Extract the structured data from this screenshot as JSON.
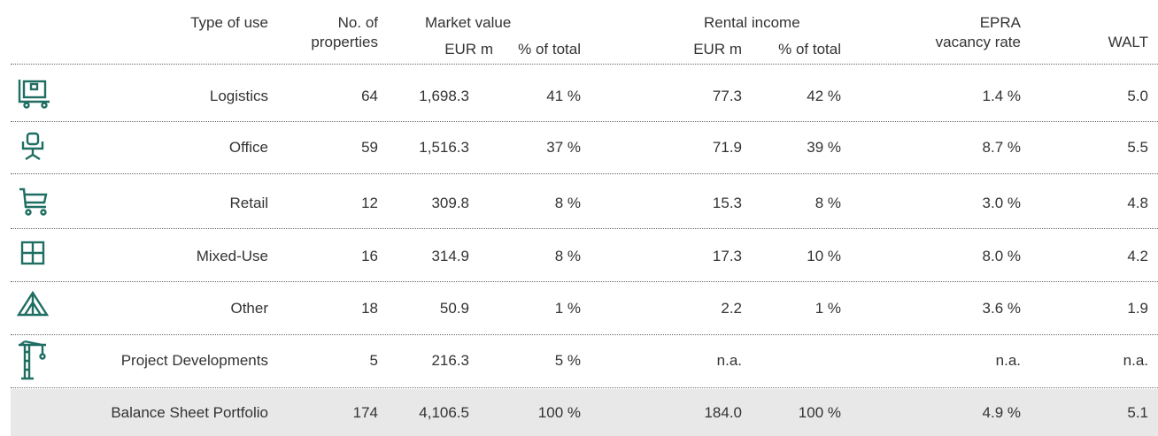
{
  "table": {
    "header": {
      "type_of_use": "Type of use",
      "no_of_properties": [
        "No. of",
        "properties"
      ],
      "market_value": "Market value",
      "market_value_eur": "EUR m",
      "market_value_pct": "% of total",
      "rental_income": "Rental income",
      "rental_income_eur": "EUR m",
      "rental_income_pct": "% of total",
      "epra": [
        "EPRA",
        "vacancy rate"
      ],
      "walt": "WALT"
    },
    "rows": [
      [
        "Logistics",
        "64",
        "1,698.3",
        "41 %",
        "77.3",
        "42 %",
        "1.4 %",
        "5.0"
      ],
      [
        "Office",
        "59",
        "1,516.3",
        "37 %",
        "71.9",
        "39 %",
        "8.7 %",
        "5.5"
      ],
      [
        "Retail",
        "12",
        "309.8",
        "8 %",
        "15.3",
        "8 %",
        "3.0 %",
        "4.8"
      ],
      [
        "Mixed-Use",
        "16",
        "314.9",
        "8 %",
        "17.3",
        "10 %",
        "8.0 %",
        "4.2"
      ],
      [
        "Other",
        "18",
        "50.9",
        "1 %",
        "2.2",
        "1 %",
        "3.6 %",
        "1.9"
      ],
      [
        "Project Developments",
        "5",
        "216.3",
        "5 %",
        "n.a.",
        null,
        "n.a.",
        "n.a."
      ]
    ],
    "total": [
      "Balance Sheet Portfolio",
      "174",
      "4,106.5",
      "100 %",
      "184.0",
      "100 %",
      "4.9 %",
      "5.1"
    ]
  }
}
